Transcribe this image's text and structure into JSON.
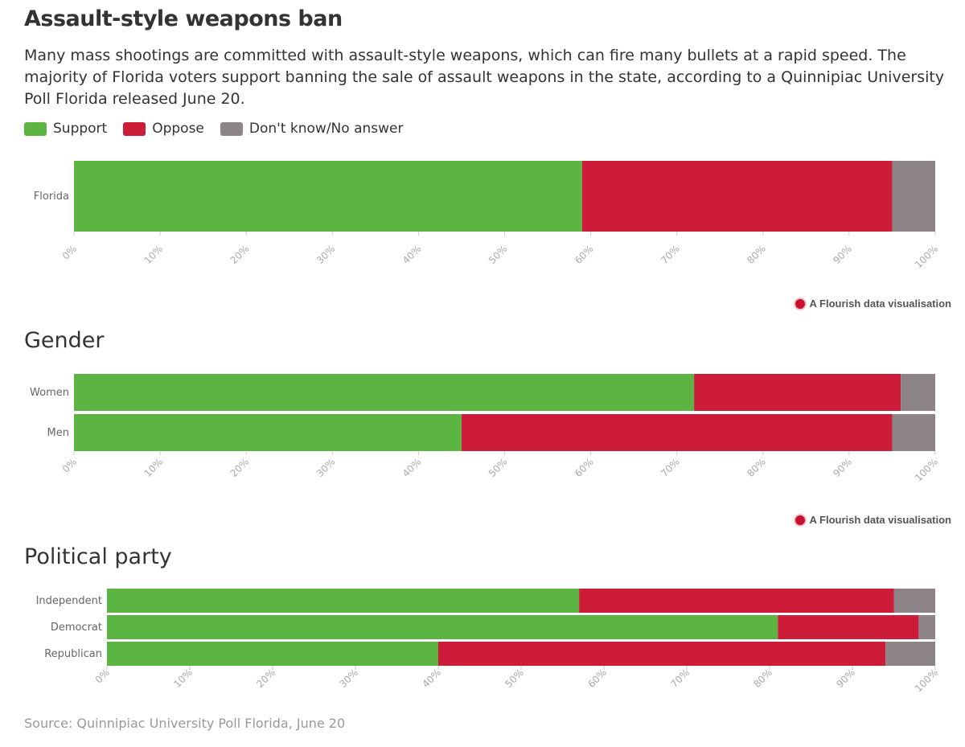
{
  "title": "Assault-style weapons ban",
  "subtitle": "Many mass shootings are committed with assault-style weapons, which can fire many bullets at a rapid speed. The majority of Florida voters support banning the sale of assault weapons in the state, according to a Quinnipiac University Poll Florida released June 20.",
  "legend": [
    {
      "label": "Support",
      "color": "#5cb543"
    },
    {
      "label": "Oppose",
      "color": "#cc1c3a"
    },
    {
      "label": "Don't know/No answer",
      "color": "#8c8487"
    }
  ],
  "flourish_label": "A Flourish data visualisation",
  "source": "Source: Quinnipiac University Poll Florida, June 20",
  "chart_data": [
    {
      "type": "bar",
      "orientation": "horizontal-stacked",
      "title": "",
      "categories": [
        "Florida"
      ],
      "series": [
        {
          "name": "Support",
          "values": [
            59
          ]
        },
        {
          "name": "Oppose",
          "values": [
            36
          ]
        },
        {
          "name": "Don't know/No answer",
          "values": [
            5
          ]
        }
      ],
      "xlim": [
        0,
        100
      ],
      "ticks": [
        "0%",
        "10%",
        "20%",
        "30%",
        "40%",
        "50%",
        "60%",
        "70%",
        "80%",
        "90%",
        "100%"
      ]
    },
    {
      "type": "bar",
      "orientation": "horizontal-stacked",
      "title": "Gender",
      "categories": [
        "Women",
        "Men"
      ],
      "series": [
        {
          "name": "Support",
          "values": [
            72,
            45
          ]
        },
        {
          "name": "Oppose",
          "values": [
            24,
            50
          ]
        },
        {
          "name": "Don't know/No answer",
          "values": [
            4,
            5
          ]
        }
      ],
      "xlim": [
        0,
        100
      ],
      "ticks": [
        "0%",
        "10%",
        "20%",
        "30%",
        "40%",
        "50%",
        "60%",
        "70%",
        "80%",
        "90%",
        "100%"
      ]
    },
    {
      "type": "bar",
      "orientation": "horizontal-stacked",
      "title": "Political party",
      "categories": [
        "Independent",
        "Democrat",
        "Republican"
      ],
      "series": [
        {
          "name": "Support",
          "values": [
            57,
            81,
            40
          ]
        },
        {
          "name": "Oppose",
          "values": [
            38,
            17,
            54
          ]
        },
        {
          "name": "Don't know/No answer",
          "values": [
            5,
            2,
            6
          ]
        }
      ],
      "xlim": [
        0,
        100
      ],
      "ticks": [
        "0%",
        "10%",
        "20%",
        "30%",
        "40%",
        "50%",
        "60%",
        "70%",
        "80%",
        "90%",
        "100%"
      ]
    }
  ]
}
